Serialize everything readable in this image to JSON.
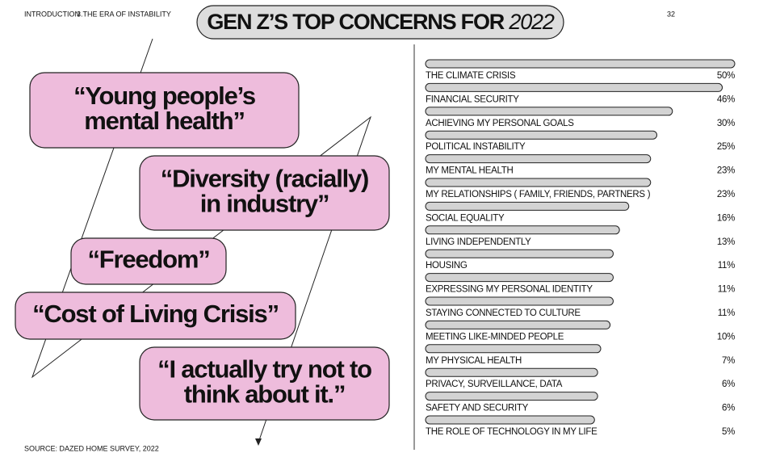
{
  "header": {
    "section": "INTRODUCTION",
    "chapter": "3.THE ERA OF INSTABILITY",
    "page": "32"
  },
  "quotes": [
    {
      "lines": [
        "“Young people’s",
        "mental health”"
      ]
    },
    {
      "lines": [
        "“Diversity (racially)",
        "in industry”"
      ]
    },
    {
      "lines": [
        "“Freedom”"
      ]
    },
    {
      "lines": [
        "“Cost of Living Crisis”"
      ]
    },
    {
      "lines": [
        "“I actually try not to",
        "think about it.”"
      ]
    }
  ],
  "source": "SOURCE: DAZED HOME SURVEY, 2022",
  "chart_data": {
    "type": "bar",
    "title": "GEN Z’S TOP CONCERNS FOR",
    "title_year": "2022",
    "categories": [
      "THE CLIMATE CRISIS",
      "FINANCIAL SECURITY",
      "ACHIEVING MY PERSONAL GOALS",
      "POLITICAL INSTABILITY",
      "MY MENTAL HEALTH",
      "MY RELATIONSHIPS ( FAMILY, FRIENDS, PARTNERS )",
      "SOCIAL EQUALITY",
      "LIVING INDEPENDENTLY",
      "HOUSING",
      "EXPRESSING MY PERSONAL IDENTITY",
      "STAYING CONNECTED TO CULTURE",
      "MEETING LIKE-MINDED PEOPLE",
      "MY PHYSICAL HEALTH",
      "PRIVACY, SURVEILLANCE, DATA",
      "SAFETY AND SECURITY",
      "THE ROLE OF TECHNOLOGY IN MY LIFE"
    ],
    "values": [
      50,
      46,
      30,
      25,
      23,
      23,
      16,
      13,
      11,
      11,
      11,
      10,
      7,
      6,
      6,
      5
    ],
    "value_labels": [
      "50%",
      "46%",
      "30%",
      "25%",
      "23%",
      "23%",
      "16%",
      "13%",
      "11%",
      "11%",
      "11%",
      "10%",
      "7%",
      "6%",
      "6%",
      "5%"
    ],
    "color": "#d3d3d3"
  }
}
